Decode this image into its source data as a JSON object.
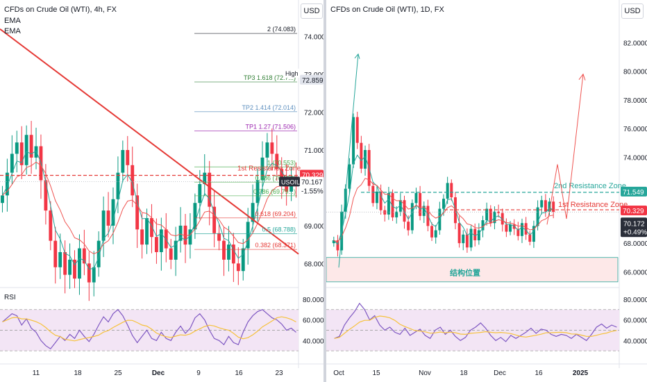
{
  "left": {
    "title": "CFDs on Crude Oil (WTI), 4h, FX",
    "indicators": [
      "EMA",
      "EMA"
    ],
    "currency_button": "USD",
    "rsi_label": "RSI",
    "fib_levels": [
      {
        "label": "2 (74.083)",
        "price": 74.083,
        "color": "#131722"
      },
      {
        "label": "TP3   1.618 (72.7...)",
        "price": 72.8,
        "color": "#2e7d32"
      },
      {
        "label": "TP2   1.414 (72.014)",
        "price": 72.014,
        "color": "#5d8fbf"
      },
      {
        "label": "TP1   1.27 (71.506)",
        "price": 71.506,
        "color": "#9c27b0"
      },
      {
        "label": "1 (70.553)",
        "price": 70.553,
        "color": "#4caf50"
      },
      {
        "label": "0.886 (70.150)",
        "price": 70.15,
        "color": "#4caf50"
      },
      {
        "label": "0.786 (69.79...)",
        "price": 69.79,
        "color": "#4caf50"
      },
      {
        "label": "0.618 (69.204)",
        "price": 69.204,
        "color": "#e53935"
      },
      {
        "label": "0.5 (68.788)",
        "price": 68.788,
        "color": "#26a69a"
      },
      {
        "label": "0.382 (68.371)",
        "price": 68.371,
        "color": "#e53935"
      }
    ],
    "resistance_label": "1st Resistance Zone",
    "badges": {
      "high_label": "High",
      "high_value": "72.859",
      "resistance_value": "70.329",
      "symbol": "USOIL",
      "last_price": "70.167",
      "change": "-1.55%"
    },
    "price_axis": [
      "74.000",
      "73.000",
      "72.000",
      "71.000",
      "69.000",
      "68.000"
    ],
    "rsi_axis": [
      "80.0000",
      "60.0000",
      "40.0000"
    ],
    "time_axis": [
      "11",
      "18",
      "25",
      "Dec",
      "9",
      "16",
      "23"
    ]
  },
  "right": {
    "title": "CFDs on Crude Oil (WTI), 1D, FX",
    "currency_button": "USD",
    "resistance_2_label": "2nd Resistance Zone",
    "resistance_1_label": "1st Resistance Zone",
    "structure_label": "结构位置",
    "badges": {
      "r2_value": "71.549",
      "r1_value": "70.329",
      "last_price": "70.172",
      "change": "+0.49%"
    },
    "price_axis": [
      "82.0000",
      "80.0000",
      "78.0000",
      "76.0000",
      "74.0000",
      "68.0000",
      "66.0000"
    ],
    "rsi_axis": [
      "80.0000",
      "60.0000",
      "40.0000"
    ],
    "time_axis": [
      "Oct",
      "15",
      "Nov",
      "18",
      "Dec",
      "16",
      "2025"
    ]
  },
  "colors": {
    "bull": "#089981",
    "bear": "#f23645",
    "trendline": "#e53935",
    "rsi_line": "#7e57c2",
    "rsi_ma": "#f6c23b",
    "rsi_bg": "#f3e5f5",
    "structure_zone": "#fde8e8"
  },
  "chart_data": [
    {
      "type": "candlestick",
      "title": "CFDs on Crude Oil (WTI), 4h, FX",
      "ylim": [
        67.4,
        74.6
      ],
      "last": 70.167,
      "x_ticks": [
        "11",
        "18",
        "25",
        "Dec",
        "9",
        "16",
        "23"
      ],
      "closes": [
        69.8,
        70.4,
        70.9,
        71.2,
        70.6,
        71.4,
        70.8,
        71.1,
        70.2,
        69.4,
        68.6,
        67.9,
        68.3,
        67.7,
        68.1,
        67.6,
        68.4,
        68.0,
        67.5,
        67.9,
        68.6,
        69.4,
        69.0,
        69.7,
        70.4,
        71.0,
        70.6,
        69.8,
        68.9,
        68.5,
        69.2,
        68.7,
        68.3,
        68.9,
        68.4,
        68.1,
        68.6,
        69.0,
        68.5,
        68.9,
        69.6,
        70.1,
        70.4,
        69.5,
        68.8,
        68.6,
        68.1,
        68.5,
        68.0,
        67.8,
        68.4,
        69.1,
        69.6,
        70.2,
        70.8,
        71.2,
        70.9,
        70.5,
        70.2,
        69.9,
        70.3,
        70.17
      ],
      "rsi": [
        58,
        62,
        66,
        64,
        55,
        61,
        52,
        48,
        40,
        35,
        32,
        38,
        44,
        40,
        46,
        42,
        50,
        44,
        39,
        46,
        55,
        63,
        58,
        66,
        70,
        64,
        55,
        45,
        38,
        44,
        50,
        42,
        40,
        48,
        42,
        40,
        48,
        54,
        47,
        52,
        62,
        66,
        60,
        50,
        42,
        40,
        36,
        44,
        38,
        36,
        48,
        58,
        64,
        68,
        70,
        66,
        62,
        60,
        56,
        50,
        52,
        48
      ]
    },
    {
      "type": "candlestick",
      "title": "CFDs on Crude Oil (WTI), 1D, FX",
      "ylim": [
        65.0,
        84.0
      ],
      "last": 70.172,
      "x_ticks": [
        "Oct",
        "15",
        "Nov",
        "18",
        "Dec",
        "16",
        "2025"
      ],
      "closes": [
        68.2,
        67.5,
        70.2,
        71.8,
        73.5,
        76.8,
        75.0,
        73.2,
        74.5,
        72.0,
        70.8,
        71.6,
        70.3,
        70.0,
        71.5,
        69.8,
        70.2,
        71.0,
        69.5,
        68.9,
        70.8,
        71.5,
        69.9,
        70.6,
        69.2,
        68.4,
        68.9,
        70.4,
        71.1,
        72.2,
        71.2,
        69.4,
        68.0,
        68.6,
        67.7,
        69.0,
        68.2,
        68.9,
        69.6,
        70.4,
        69.4,
        70.2,
        70.1,
        69.3,
        68.8,
        69.3,
        69.0,
        68.5,
        69.4,
        68.6,
        68.1,
        69.2,
        70.5,
        71.0,
        70.2,
        70.9,
        70.172
      ],
      "rsi": [
        42,
        44,
        55,
        62,
        68,
        76,
        70,
        60,
        64,
        55,
        50,
        53,
        48,
        46,
        52,
        45,
        48,
        51,
        45,
        42,
        50,
        53,
        46,
        50,
        44,
        40,
        43,
        50,
        53,
        57,
        52,
        45,
        40,
        43,
        39,
        45,
        42,
        45,
        48,
        52,
        47,
        51,
        50,
        46,
        44,
        46,
        45,
        42,
        46,
        43,
        40,
        46,
        53,
        56,
        52,
        55,
        53
      ],
      "annotations": [
        "2nd Resistance Zone 71.549",
        "1st Resistance Zone 70.329",
        "结构位置"
      ]
    }
  ]
}
